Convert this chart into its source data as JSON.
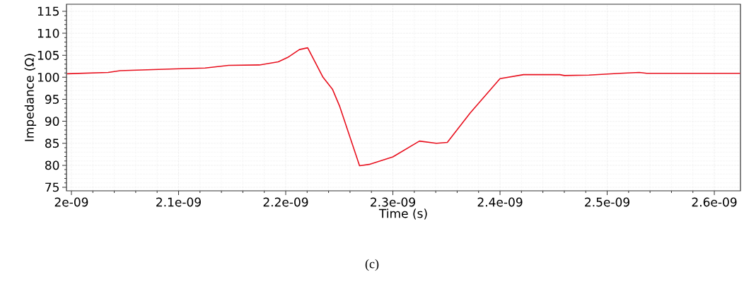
{
  "chart_data": {
    "type": "line",
    "xlabel": "Time (s)",
    "ylabel": "Impedance (Ω)",
    "annotations": [
      "(c)"
    ],
    "color": "#e8101e",
    "grid": true,
    "x": [
      1.996e-09,
      2.0343e-09,
      2.0455e-09,
      2.0962e-09,
      2.1248e-09,
      2.1467e-09,
      2.1754e-09,
      2.193e-09,
      2.2018e-09,
      2.2128e-09,
      2.2205e-09,
      2.2348e-09,
      2.2436e-09,
      2.2502e-09,
      2.2689e-09,
      2.2778e-09,
      2.3e-09,
      2.3248e-09,
      2.3406e-09,
      2.3508e-09,
      2.3722e-09,
      2.4e-09,
      2.4219e-09,
      2.4558e-09,
      2.46e-09,
      2.483e-09,
      2.512e-09,
      2.53e-09,
      2.537e-09,
      2.624e-09
    ],
    "values": [
      100.8,
      101.1,
      101.5,
      101.9,
      102.1,
      102.7,
      102.8,
      103.5,
      104.5,
      106.3,
      106.7,
      100.0,
      97.3,
      93.5,
      79.9,
      80.2,
      81.9,
      85.5,
      85.0,
      85.2,
      91.9,
      99.7,
      100.6,
      100.6,
      100.4,
      100.5,
      100.9,
      101.1,
      100.9,
      100.9
    ],
    "xlim": [
      1.9954e-09,
      2.6244e-09
    ],
    "ylim": [
      74.2,
      116.6
    ],
    "xticks": [
      {
        "value": 2e-09,
        "label": "2e-09"
      },
      {
        "value": 2.1e-09,
        "label": "2.1e-09"
      },
      {
        "value": 2.2e-09,
        "label": "2.2e-09"
      },
      {
        "value": 2.3e-09,
        "label": "2.3e-09"
      },
      {
        "value": 2.4e-09,
        "label": "2.4e-09"
      },
      {
        "value": 2.5e-09,
        "label": "2.5e-09"
      },
      {
        "value": 2.6e-09,
        "label": "2.6e-09"
      }
    ],
    "yticks": [
      75,
      80,
      85,
      90,
      95,
      100,
      105,
      110,
      115
    ]
  }
}
